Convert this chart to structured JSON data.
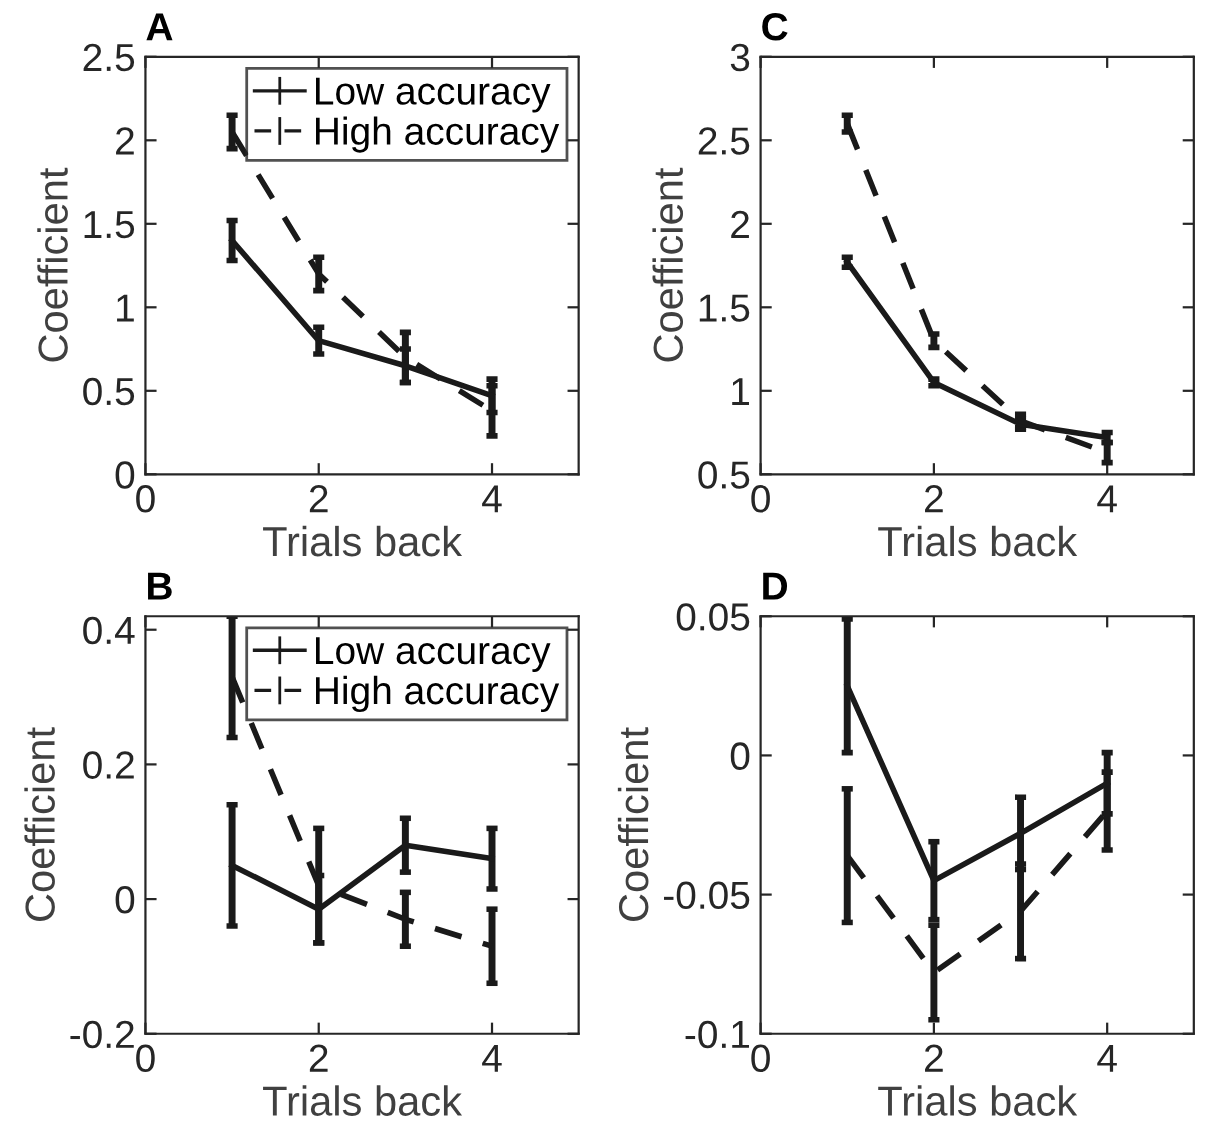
{
  "chart_data": [
    {
      "type": "line",
      "title": "A",
      "xlabel": "Trials back",
      "ylabel": "Coefficient",
      "x": [
        1,
        2,
        3,
        4
      ],
      "xlim": [
        0,
        5
      ],
      "xticks": [
        0,
        2,
        4
      ],
      "ylim": [
        0,
        2.5
      ],
      "yticks": [
        0,
        0.5,
        1,
        1.5,
        2,
        2.5
      ],
      "grid": false,
      "legend": "top right",
      "marker": "none",
      "series": [
        {
          "name": "Low accuracy",
          "color": "#1a1a1a",
          "line_style": "solid",
          "values": [
            1.4,
            0.8,
            0.65,
            0.47
          ],
          "errors": [
            0.12,
            0.08,
            0.1,
            0.1
          ]
        },
        {
          "name": "High accuracy",
          "color": "#1a1a1a",
          "line_style": "dashed",
          "values": [
            2.05,
            1.2,
            0.7,
            0.38
          ],
          "errors": [
            0.1,
            0.1,
            0.15,
            0.15
          ]
        }
      ]
    },
    {
      "type": "line",
      "title": "C",
      "xlabel": "Trials back",
      "ylabel": "Coefficient",
      "x": [
        1,
        2,
        3,
        4
      ],
      "xlim": [
        0,
        5
      ],
      "xticks": [
        0,
        2,
        4
      ],
      "ylim": [
        0.5,
        3
      ],
      "yticks": [
        0.5,
        1,
        1.5,
        2,
        2.5,
        3
      ],
      "grid": false,
      "legend": false,
      "marker": "none",
      "series": [
        {
          "color": "#1a1a1a",
          "line_style": "solid",
          "values": [
            1.77,
            1.05,
            0.8,
            0.72
          ],
          "errors": [
            0.03,
            0.02,
            0.03,
            0.03
          ]
        },
        {
          "color": "#1a1a1a",
          "line_style": "dashed",
          "values": [
            2.6,
            1.3,
            0.82,
            0.63
          ],
          "errors": [
            0.05,
            0.04,
            0.04,
            0.06
          ]
        }
      ]
    },
    {
      "type": "line",
      "title": "B",
      "xlabel": "Trials back",
      "ylabel": "Coefficient",
      "x": [
        1,
        2,
        3,
        4
      ],
      "xlim": [
        0,
        5
      ],
      "xticks": [
        0,
        2,
        4
      ],
      "ylim": [
        -0.2,
        0.42
      ],
      "yticks": [
        -0.2,
        0,
        0.2,
        0.4
      ],
      "grid": false,
      "legend": "top right",
      "marker": "none",
      "series": [
        {
          "name": "Low accuracy",
          "color": "#1a1a1a",
          "line_style": "solid",
          "values": [
            0.05,
            -0.015,
            0.08,
            0.06
          ],
          "errors": [
            0.09,
            0.05,
            0.04,
            0.045
          ]
        },
        {
          "name": "High accuracy",
          "color": "#1a1a1a",
          "line_style": "dashed",
          "values": [
            0.33,
            0.02,
            -0.03,
            -0.07
          ],
          "errors": [
            0.09,
            0.085,
            0.04,
            0.055
          ]
        }
      ]
    },
    {
      "type": "line",
      "title": "D",
      "xlabel": "Trials back",
      "ylabel": "Coefficient",
      "x": [
        1,
        2,
        3,
        4
      ],
      "xlim": [
        0,
        5
      ],
      "xticks": [
        0,
        2,
        4
      ],
      "ylim": [
        -0.1,
        0.05
      ],
      "yticks": [
        -0.1,
        -0.05,
        0,
        0.05
      ],
      "grid": false,
      "legend": false,
      "marker": "none",
      "series": [
        {
          "color": "#1a1a1a",
          "line_style": "solid",
          "values": [
            0.025,
            -0.045,
            -0.028,
            -0.01
          ],
          "errors": [
            0.024,
            0.014,
            0.013,
            0.011
          ]
        },
        {
          "color": "#1a1a1a",
          "line_style": "dashed",
          "values": [
            -0.036,
            -0.078,
            -0.056,
            -0.02
          ],
          "errors": [
            0.024,
            0.017,
            0.017,
            0.014
          ]
        }
      ]
    }
  ]
}
